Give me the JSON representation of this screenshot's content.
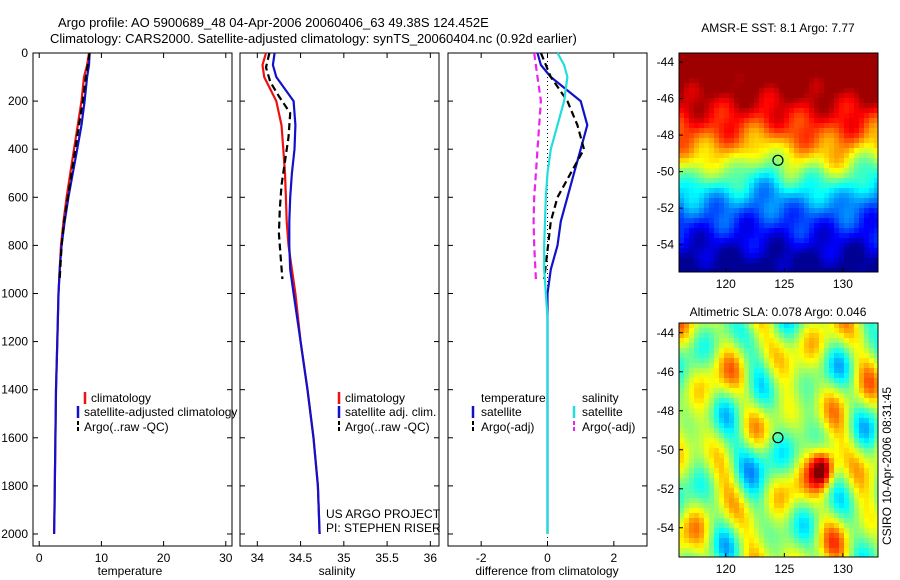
{
  "figure": {
    "title_line1": "Argo profile: AO 5900689_48 04-Apr-2006 20060406_63 49.38S 124.452E",
    "title_line2": "Climatology: CARS2000. Satellite-adjusted climatology: synTS_20060404.nc (0.92d earlier)",
    "credit": "US ARGO PROJECT",
    "pi": "PI: STEPHEN RISER",
    "timestamp": "CSIRO 10-Apr-2006 08:31:45"
  },
  "colors": {
    "red": "#ee1111",
    "blue": "#1111cc",
    "black": "#000000",
    "cyan": "#22dddd",
    "magenta": "#ee22ee"
  },
  "chart_data": [
    {
      "id": "temperature",
      "type": "line",
      "xlabel": "temperature",
      "ylabel": "",
      "xlim": [
        -1,
        31
      ],
      "ylim": [
        2050,
        0
      ],
      "y_reversed": true,
      "xticks": [
        0,
        10,
        20,
        30
      ],
      "yticks": [
        0,
        200,
        400,
        600,
        800,
        1000,
        1200,
        1400,
        1600,
        1800,
        2000
      ],
      "legend": [
        "climatology",
        "satellite-adjusted climatology",
        "Argo(..raw -QC)"
      ],
      "legend_placement": "lower-right",
      "series": [
        {
          "name": "climatology",
          "color": "red",
          "style": "solid",
          "x": [
            8.0,
            7.7,
            7.2,
            6.8,
            6.2,
            5.6,
            5.0,
            4.4,
            3.9,
            3.5,
            3.3,
            3.1,
            2.9,
            2.7,
            2.6,
            2.5,
            2.45,
            2.4
          ],
          "y": [
            0,
            50,
            100,
            200,
            300,
            400,
            500,
            600,
            700,
            800,
            900,
            1000,
            1200,
            1400,
            1600,
            1800,
            1900,
            2000
          ]
        },
        {
          "name": "satellite-adjusted climatology",
          "color": "blue",
          "style": "solid",
          "x": [
            8.1,
            8.0,
            7.7,
            7.3,
            6.8,
            6.1,
            5.4,
            4.7,
            4.1,
            3.6,
            3.3,
            3.1,
            2.9,
            2.7,
            2.6,
            2.5,
            2.45,
            2.4
          ],
          "y": [
            0,
            50,
            100,
            200,
            300,
            400,
            500,
            600,
            700,
            800,
            900,
            1000,
            1200,
            1400,
            1600,
            1800,
            1900,
            2000
          ]
        },
        {
          "name": "Argo(..raw -QC)",
          "color": "black",
          "style": "dashed",
          "x": [
            8.1,
            7.8,
            7.5,
            7.0,
            6.4,
            5.8,
            5.2,
            4.6,
            4.0,
            3.6,
            3.3
          ],
          "y": [
            0,
            50,
            100,
            200,
            300,
            400,
            500,
            600,
            700,
            800,
            940
          ]
        }
      ]
    },
    {
      "id": "salinity",
      "type": "line",
      "xlabel": "salinity",
      "ylabel": "",
      "xlim": [
        33.8,
        36.1
      ],
      "ylim": [
        2050,
        0
      ],
      "y_reversed": true,
      "xticks": [
        34,
        34.5,
        35,
        35.5,
        36
      ],
      "legend": [
        "climatology",
        "satellite adj. clim.",
        "Argo(..raw -QC)"
      ],
      "legend_placement": "lower-right",
      "series": [
        {
          "name": "climatology",
          "color": "red",
          "style": "solid",
          "x": [
            34.1,
            34.06,
            34.08,
            34.22,
            34.28,
            34.3,
            34.32,
            34.33,
            34.34,
            34.36,
            34.4,
            34.44,
            34.5,
            34.58,
            34.65,
            34.7,
            34.72
          ],
          "y": [
            0,
            50,
            100,
            200,
            300,
            400,
            500,
            600,
            700,
            800,
            900,
            1000,
            1200,
            1400,
            1600,
            1800,
            2000
          ]
        },
        {
          "name": "satellite adj. clim.",
          "color": "blue",
          "style": "solid",
          "x": [
            34.2,
            34.18,
            34.22,
            34.42,
            34.44,
            34.43,
            34.4,
            34.38,
            34.37,
            34.37,
            34.38,
            34.42,
            34.5,
            34.58,
            34.65,
            34.7,
            34.72
          ],
          "y": [
            0,
            50,
            100,
            200,
            300,
            400,
            500,
            600,
            700,
            800,
            900,
            1000,
            1200,
            1400,
            1600,
            1800,
            2000
          ]
        },
        {
          "name": "Argo(..raw -QC)",
          "color": "black",
          "style": "dashed",
          "x": [
            34.14,
            34.1,
            34.15,
            34.25,
            34.38,
            34.36,
            34.32,
            34.28,
            34.26,
            34.25,
            34.27,
            34.29
          ],
          "y": [
            0,
            60,
            120,
            180,
            250,
            350,
            450,
            550,
            650,
            750,
            850,
            940
          ]
        }
      ]
    },
    {
      "id": "difference",
      "type": "line",
      "xlabel": "difference from climatology",
      "ylabel": "",
      "xlim": [
        -3,
        3
      ],
      "ylim": [
        2050,
        0
      ],
      "y_reversed": true,
      "xticks": [
        -2,
        0,
        2
      ],
      "legend_left_title": "temperature",
      "legend_right_title": "salinity",
      "legend": [
        "satellite",
        "Argo(-adj)",
        "satellite",
        "Argo(-adj)"
      ],
      "legend_placement": "lower-center",
      "series": [
        {
          "name": "satellite",
          "group": "temperature",
          "color": "blue",
          "style": "solid",
          "x": [
            -0.3,
            -0.2,
            0.1,
            1.0,
            1.2,
            1.0,
            0.8,
            0.6,
            0.4,
            0.3,
            0.1,
            0.0,
            0.0,
            0.0,
            0.0
          ],
          "y": [
            0,
            50,
            100,
            200,
            300,
            400,
            500,
            600,
            700,
            800,
            900,
            1000,
            1200,
            1600,
            2000
          ]
        },
        {
          "name": "Argo(-adj)",
          "group": "temperature",
          "color": "black",
          "style": "dashed",
          "x": [
            -0.2,
            0.1,
            0.6,
            0.9,
            1.1,
            0.7,
            0.3,
            0.1,
            -0.1
          ],
          "y": [
            0,
            100,
            200,
            300,
            400,
            500,
            600,
            700,
            940
          ]
        },
        {
          "name": "satellite",
          "group": "salinity",
          "color": "cyan",
          "style": "solid",
          "x": [
            0.3,
            0.5,
            0.6,
            0.5,
            0.3,
            0.1,
            0.0,
            -0.05,
            -0.1,
            -0.1,
            0.0,
            0.0,
            0.0
          ],
          "y": [
            0,
            50,
            100,
            200,
            300,
            400,
            500,
            600,
            800,
            900,
            1100,
            1500,
            2000
          ]
        },
        {
          "name": "Argo(-adj)",
          "group": "salinity",
          "color": "magenta",
          "style": "dashed",
          "x": [
            -0.4,
            -0.3,
            -0.2,
            -0.25,
            -0.3,
            -0.35,
            -0.4,
            -0.42,
            -0.4,
            -0.35
          ],
          "y": [
            0,
            100,
            200,
            300,
            400,
            500,
            600,
            700,
            800,
            940
          ]
        }
      ]
    },
    {
      "id": "sst_map",
      "type": "heatmap",
      "title": "AMSR-E SST: 8.1 Argo: 7.77",
      "xlim": [
        116,
        133
      ],
      "ylim": [
        -55.5,
        -43.5
      ],
      "xticks": [
        120,
        125,
        130
      ],
      "yticks": [
        -44,
        -46,
        -48,
        -50,
        -52,
        -54
      ],
      "marker": {
        "lon": 124.452,
        "lat": -49.38
      }
    },
    {
      "id": "sla_map",
      "type": "heatmap",
      "title": "Altimetric SLA: 0.078 Argo: 0.046",
      "xlim": [
        116,
        133
      ],
      "ylim": [
        -55.5,
        -43.5
      ],
      "xticks": [
        120,
        125,
        130
      ],
      "yticks": [
        -44,
        -46,
        -48,
        -50,
        -52,
        -54
      ],
      "marker": {
        "lon": 124.452,
        "lat": -49.38
      }
    }
  ]
}
